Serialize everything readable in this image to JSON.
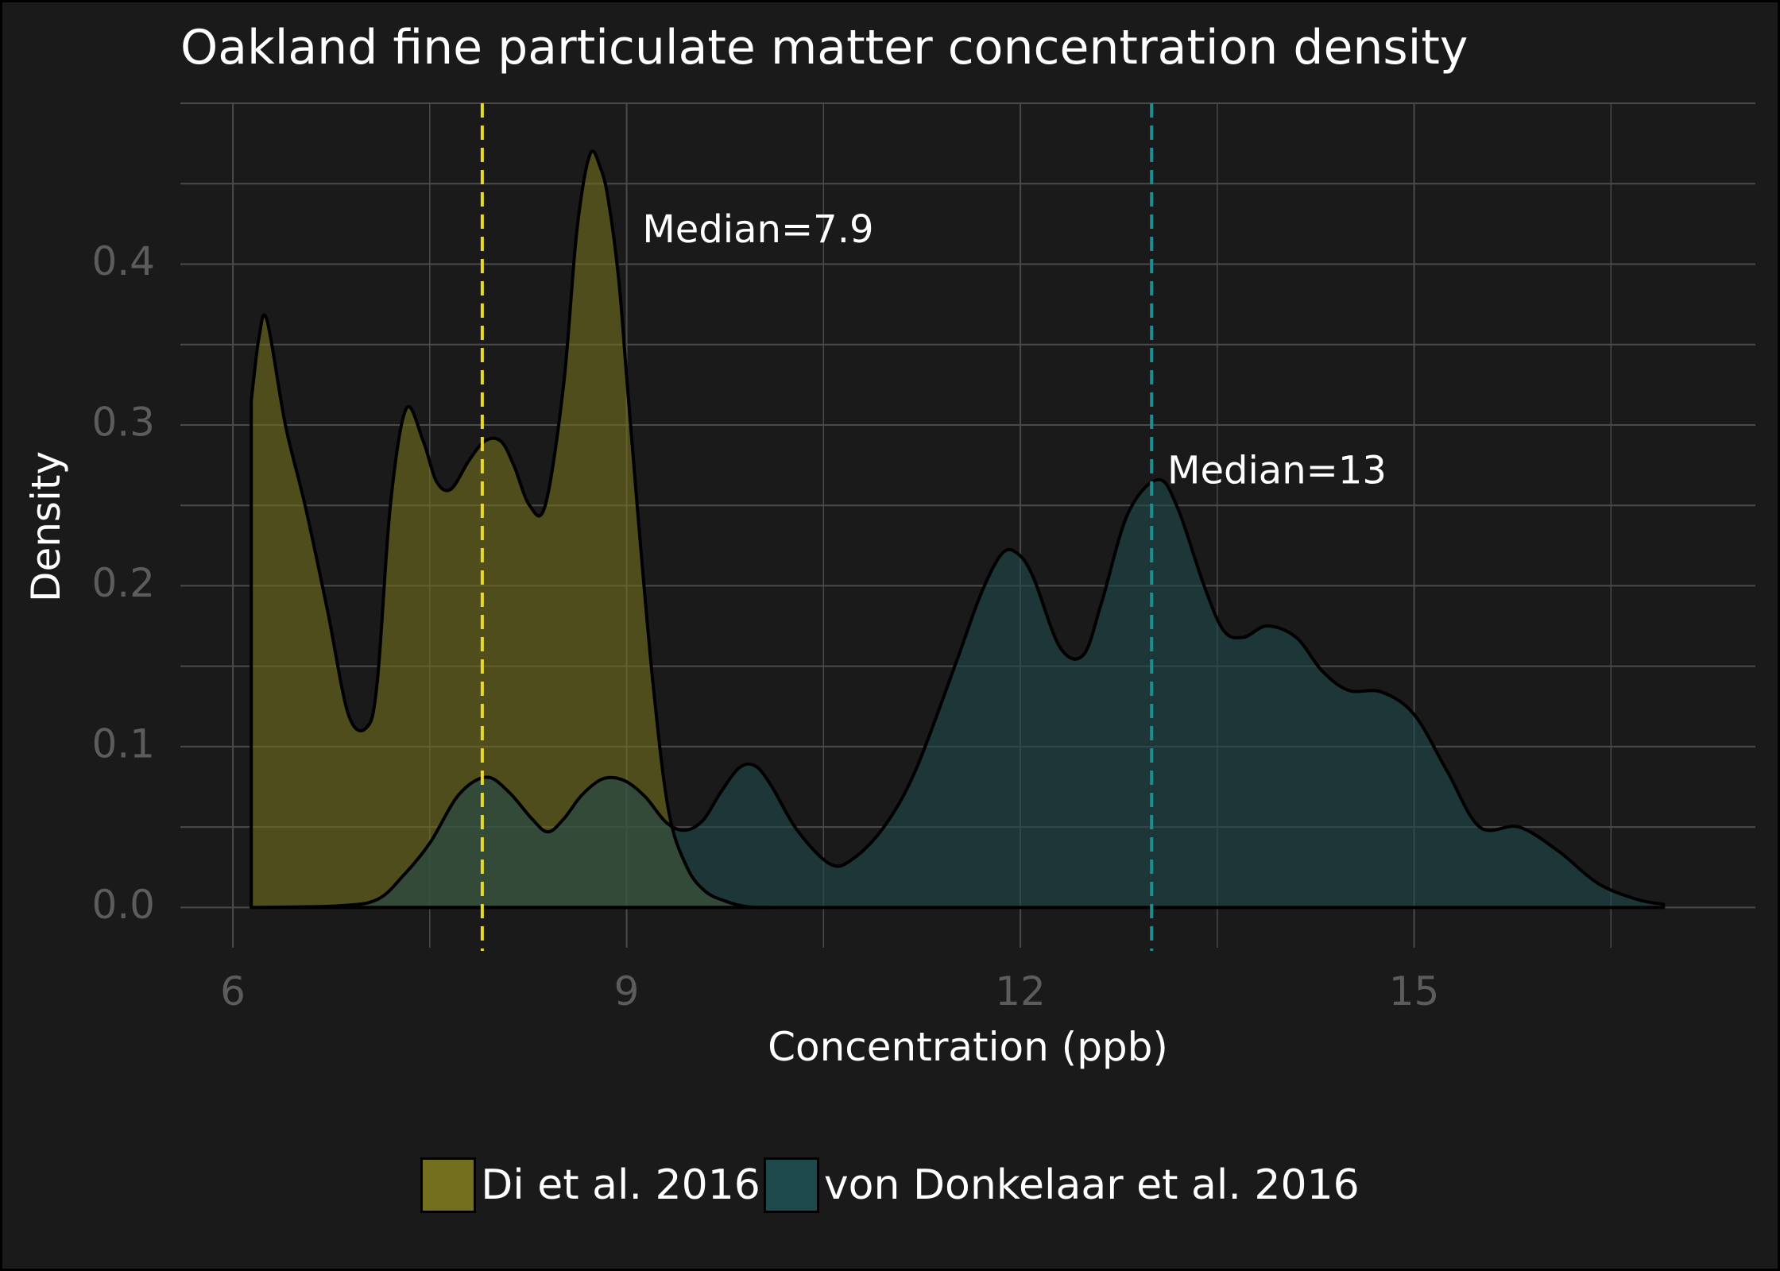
{
  "chart_data": {
    "type": "area",
    "title": "Oakland fine particulate matter concentration density",
    "xlabel": "Concentration (ppb)",
    "ylabel": "Density",
    "xlim": [
      5.6,
      17.6
    ],
    "ylim": [
      -0.025,
      0.5
    ],
    "x_ticks": [
      6,
      9,
      12,
      15
    ],
    "x_tick_labels": [
      "6",
      "9",
      "12",
      "15"
    ],
    "y_ticks": [
      0.0,
      0.1,
      0.2,
      0.3,
      0.4
    ],
    "y_tick_labels": [
      "0.0",
      "0.1",
      "0.2",
      "0.3",
      "0.4"
    ],
    "grid": true,
    "legend_position": "bottom",
    "series": [
      {
        "name": "Di et al. 2016",
        "fill": "#746f1f",
        "median_line_color": "#e8d82b",
        "median": 7.9,
        "median_label": "Median=7.9",
        "x": [
          6.14,
          6.2,
          6.26,
          6.4,
          6.55,
          6.72,
          6.88,
          7.02,
          7.1,
          7.2,
          7.32,
          7.45,
          7.55,
          7.66,
          7.8,
          7.92,
          8.04,
          8.14,
          8.26,
          8.38,
          8.52,
          8.62,
          8.72,
          8.8,
          8.86,
          8.94,
          9.0,
          9.08,
          9.2,
          9.32,
          9.46,
          9.6,
          9.75,
          9.88,
          10.0,
          10.1
        ],
        "y": [
          0.315,
          0.355,
          0.365,
          0.3,
          0.25,
          0.185,
          0.12,
          0.112,
          0.14,
          0.25,
          0.31,
          0.29,
          0.265,
          0.26,
          0.278,
          0.29,
          0.29,
          0.275,
          0.25,
          0.25,
          0.325,
          0.42,
          0.468,
          0.46,
          0.44,
          0.39,
          0.33,
          0.25,
          0.14,
          0.06,
          0.025,
          0.01,
          0.004,
          0.001,
          0.0,
          0.0
        ]
      },
      {
        "name": "von Donkelaar et al. 2016",
        "fill": "#1f4a4d",
        "median_line_color": "#1f8c91",
        "median": 13,
        "median_label": "Median=13",
        "x": [
          6.14,
          6.8,
          7.1,
          7.3,
          7.5,
          7.72,
          7.93,
          8.1,
          8.28,
          8.4,
          8.52,
          8.66,
          8.82,
          8.98,
          9.14,
          9.3,
          9.44,
          9.58,
          9.72,
          9.86,
          9.98,
          10.1,
          10.3,
          10.55,
          10.72,
          10.96,
          11.2,
          11.5,
          11.7,
          11.86,
          11.98,
          12.1,
          12.3,
          12.48,
          12.62,
          12.82,
          13.05,
          13.2,
          13.4,
          13.55,
          13.7,
          13.88,
          14.1,
          14.3,
          14.5,
          14.75,
          15.0,
          15.25,
          15.5,
          15.8,
          16.1,
          16.4,
          16.7,
          16.9
        ],
        "y": [
          0.0,
          0.001,
          0.005,
          0.02,
          0.04,
          0.07,
          0.081,
          0.072,
          0.055,
          0.047,
          0.055,
          0.07,
          0.08,
          0.079,
          0.069,
          0.053,
          0.048,
          0.054,
          0.072,
          0.087,
          0.088,
          0.076,
          0.048,
          0.027,
          0.03,
          0.05,
          0.085,
          0.15,
          0.195,
          0.22,
          0.22,
          0.205,
          0.162,
          0.157,
          0.19,
          0.245,
          0.266,
          0.248,
          0.2,
          0.172,
          0.168,
          0.175,
          0.168,
          0.147,
          0.135,
          0.134,
          0.12,
          0.085,
          0.05,
          0.05,
          0.035,
          0.015,
          0.005,
          0.002
        ]
      }
    ]
  }
}
